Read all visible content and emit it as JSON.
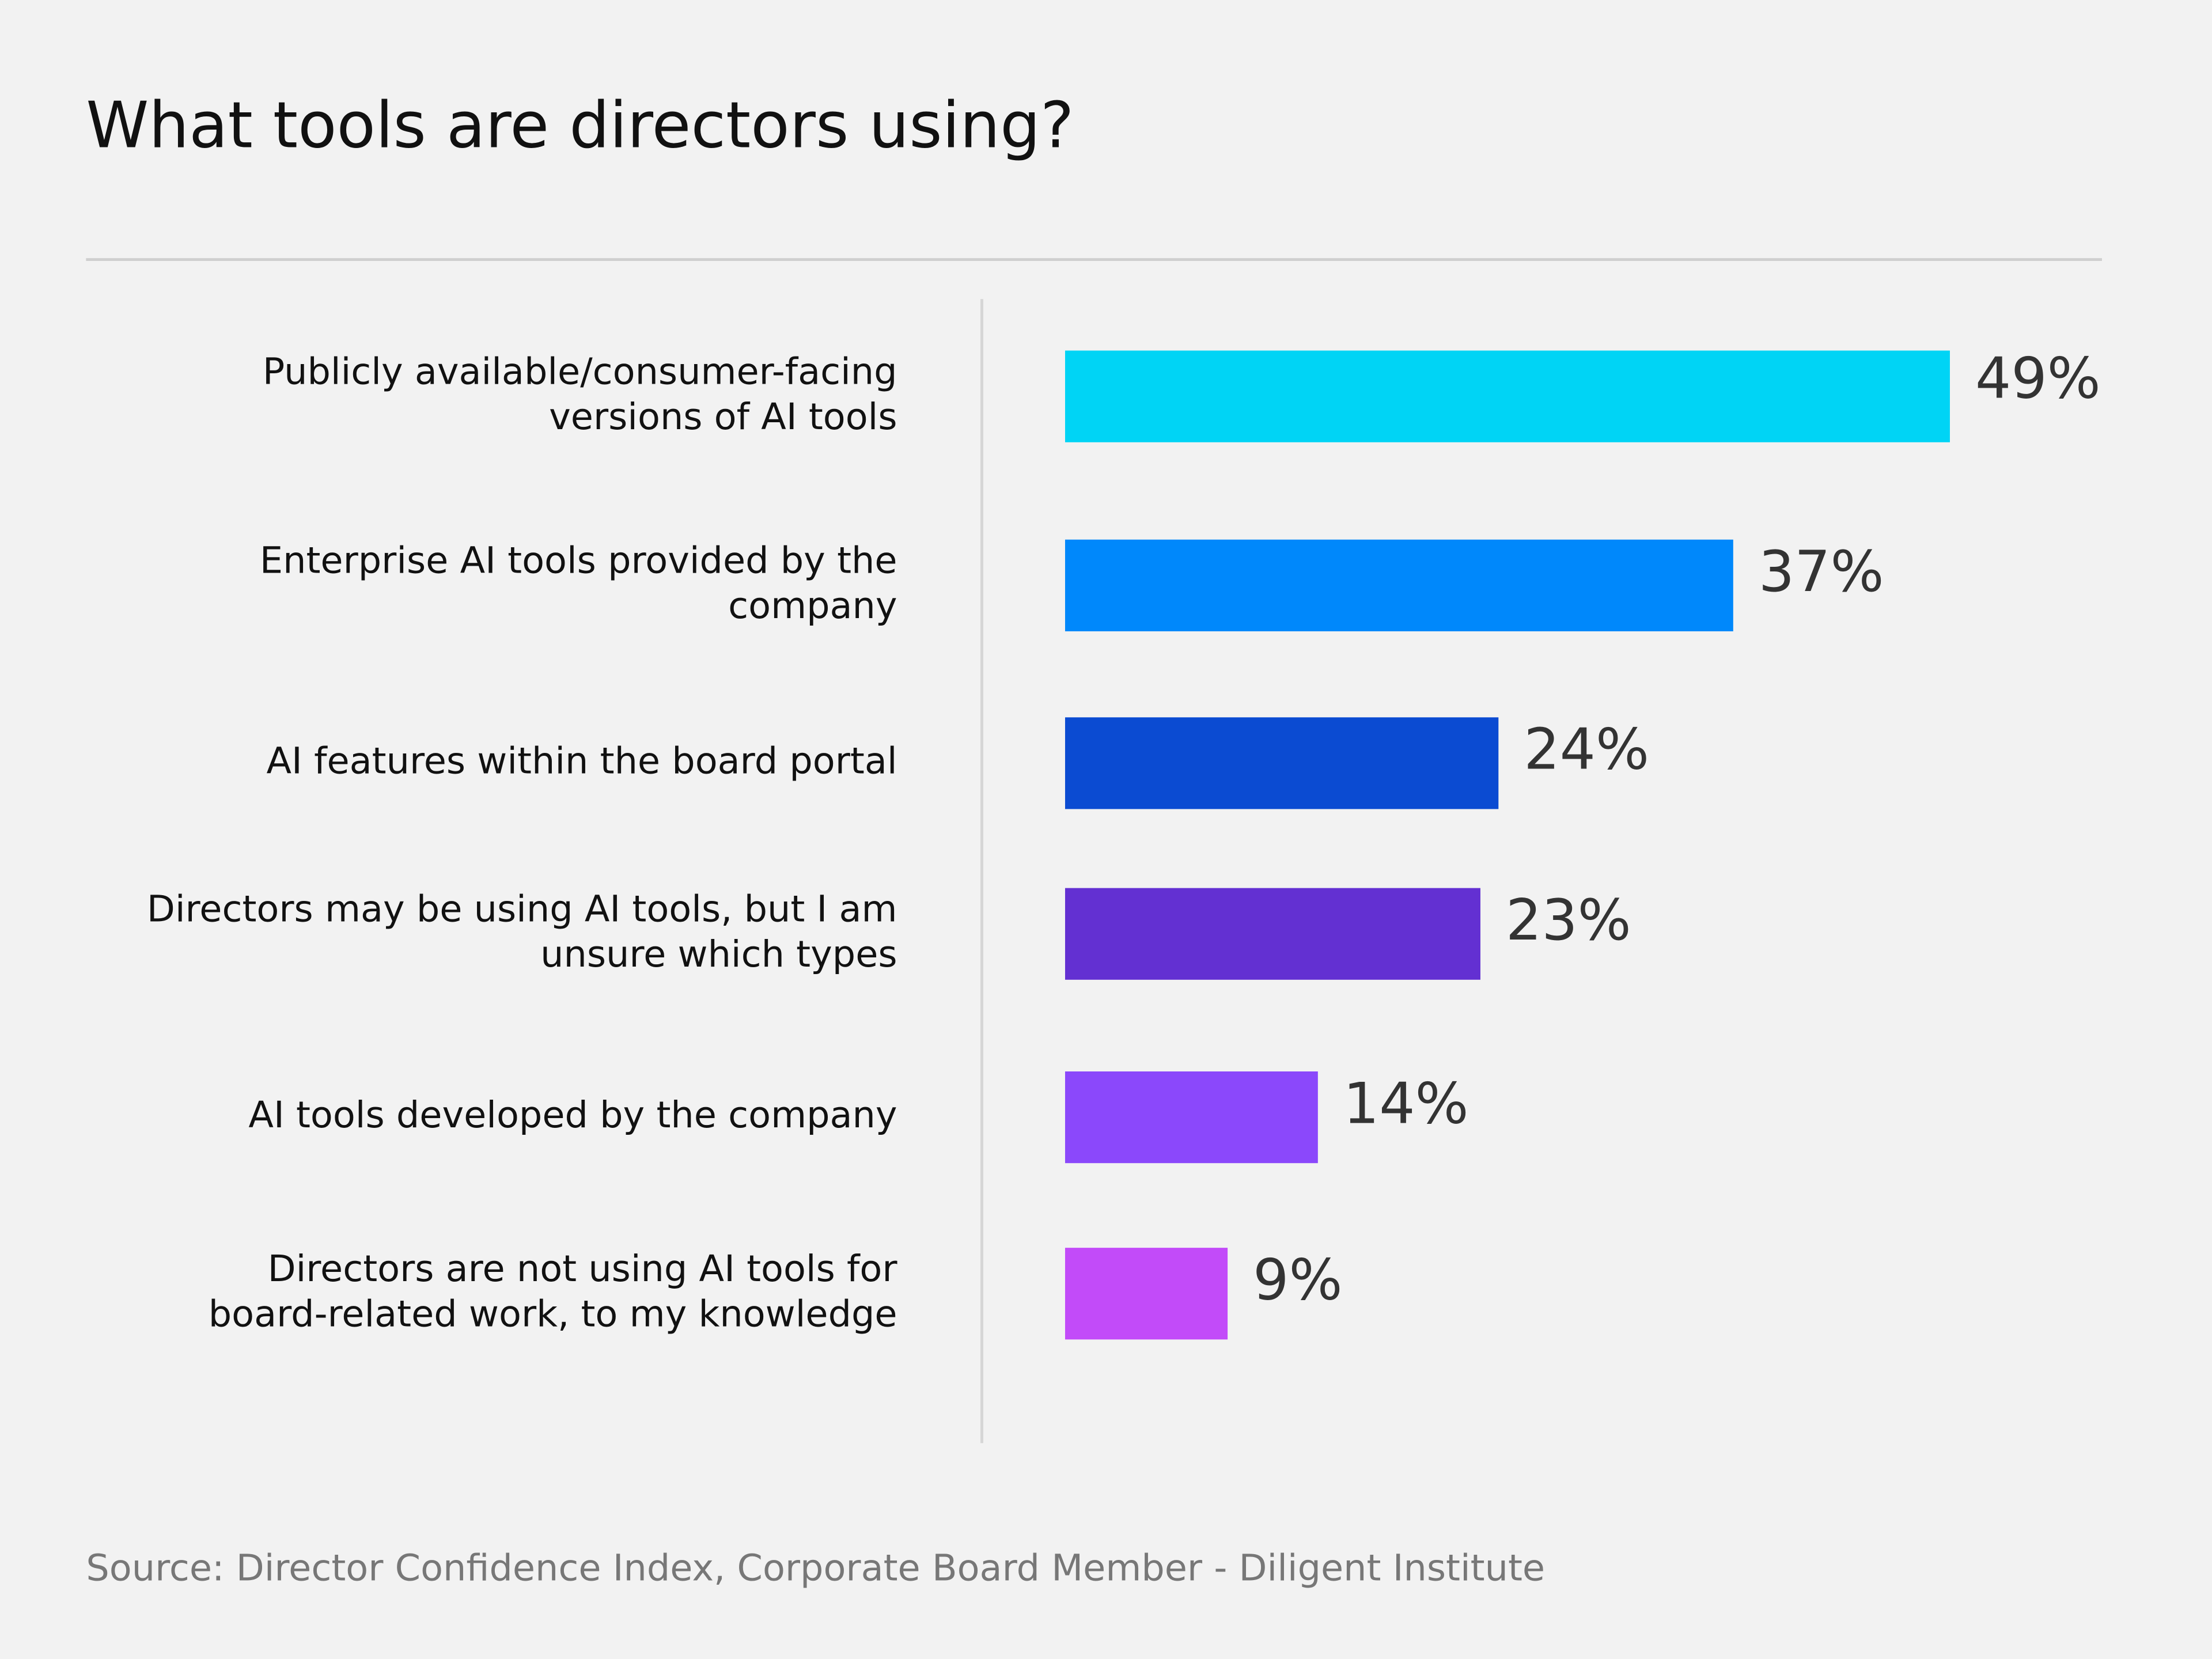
{
  "chart_data": {
    "type": "bar",
    "orientation": "horizontal",
    "title": "What tools are directors using?",
    "categories": [
      [
        "Publicly available/consumer-facing",
        "versions of AI tools"
      ],
      [
        "Enterprise AI tools provided by the",
        "company"
      ],
      [
        "AI features within the board portal"
      ],
      [
        "Directors may be using AI tools, but I am",
        "unsure which types"
      ],
      [
        "AI tools developed by the company"
      ],
      [
        "Directors are not using AI tools for",
        "board-related work, to my knowledge"
      ]
    ],
    "values": [
      49,
      37,
      24,
      23,
      14,
      9
    ],
    "value_labels": [
      "49%",
      "37%",
      "24%",
      "23%",
      "14%",
      "9%"
    ],
    "colors": [
      "#00d4f5",
      "#0088fb",
      "#0b4bd2",
      "#6330d2",
      "#8b48fb",
      "#c24bf9"
    ],
    "source": "Source: Director Confidence Index, Corporate Board Member - Diligent Institute"
  }
}
